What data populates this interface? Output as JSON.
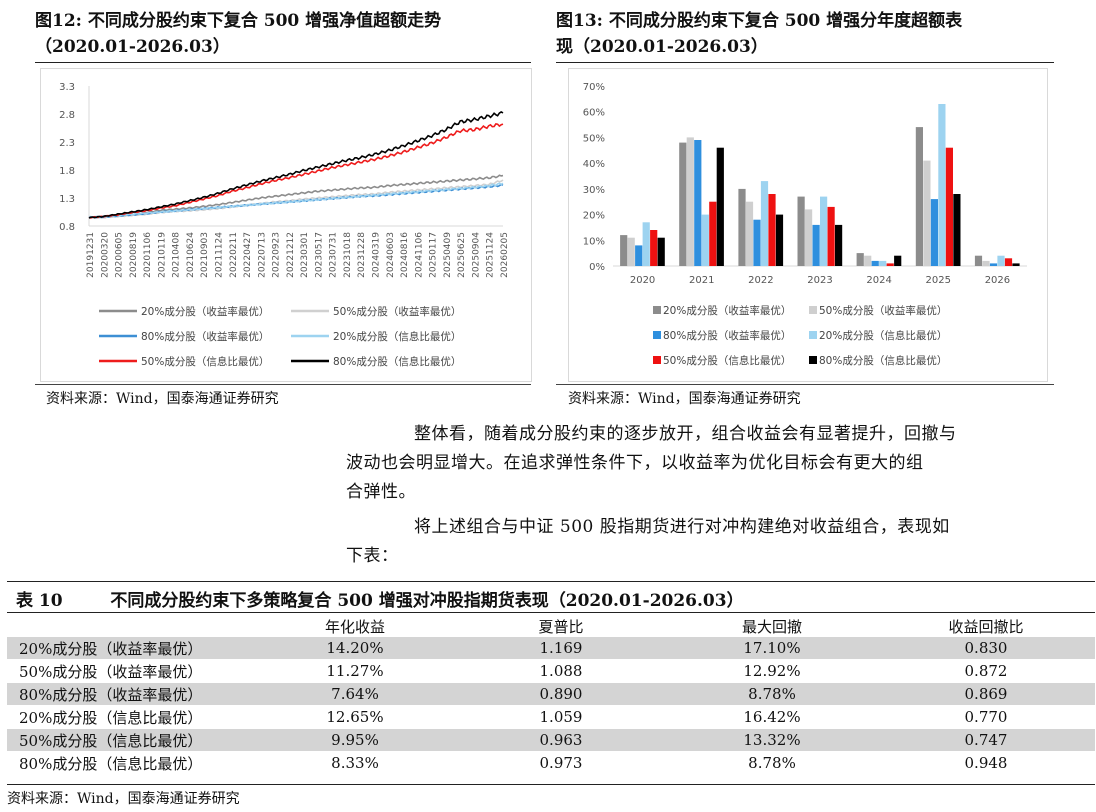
{
  "fig12": {
    "title_line1": "图12:  不同成分股约束下复合  500  增强净值超额走势",
    "title_line2": "（2020.01-2026.03）",
    "source": "资料来源：Wind，国泰海通证券研究"
  },
  "fig13": {
    "title_line1": "图13:  不同成分股约束下复合  500  增强分年度超额表",
    "title_line2": "现（2020.01-2026.03）",
    "source": "资料来源：Wind，国泰海通证券研究"
  },
  "paragraphs": {
    "p1_line1": "整体看，随着成分股约束的逐步放开，组合收益会有显著提升，回撤与",
    "p1_line2": "波动也会明显增大。在追求弹性条件下，以收益率为优化目标会有更大的组",
    "p1_line3": "合弹性。",
    "p2_line1": "将上述组合与中证 500 股指期货进行对冲构建绝对收益组合，表现如",
    "p2_line2": "下表："
  },
  "table10": {
    "label": "表 10",
    "title": "不同成分股约束下多策略复合 500 增强对冲股指期货表现（2020.01-2026.03）",
    "headers": [
      "",
      "年化收益",
      "夏普比",
      "最大回撤",
      "收益回撤比"
    ],
    "rows": [
      [
        "20%成分股（收益率最优）",
        "14.20%",
        "1.169",
        "17.10%",
        "0.830"
      ],
      [
        "50%成分股（收益率最优）",
        "11.27%",
        "1.088",
        "12.92%",
        "0.872"
      ],
      [
        "80%成分股（收益率最优）",
        "7.64%",
        "0.890",
        "8.78%",
        "0.869"
      ],
      [
        "20%成分股（信息比最优）",
        "12.65%",
        "1.059",
        "16.42%",
        "0.770"
      ],
      [
        "50%成分股（信息比最优）",
        "9.95%",
        "0.963",
        "13.32%",
        "0.747"
      ],
      [
        "80%成分股（信息比最优）",
        "8.33%",
        "0.973",
        "8.78%",
        "0.948"
      ]
    ],
    "source": "资料来源：Wind，国泰海通证券研究"
  },
  "chart_data": [
    {
      "type": "line",
      "title": "不同成分股约束下复合 500 增强净值超额走势",
      "ylim": [
        0.8,
        3.3
      ],
      "yticks": [
        "3.3",
        "2.8",
        "2.3",
        "1.8",
        "1.3",
        "0.8"
      ],
      "ytick_values": [
        3.3,
        2.8,
        2.3,
        1.8,
        1.3,
        0.8
      ],
      "x_tick_labels": [
        "20191231",
        "20200320",
        "20200605",
        "20200819",
        "20201106",
        "20210119",
        "20210408",
        "20210624",
        "20210903",
        "20211124",
        "20220211",
        "20220427",
        "20220713",
        "20220923",
        "20221212",
        "20230301",
        "20230517",
        "20230731",
        "20231018",
        "20231228",
        "20240319",
        "20240603",
        "20240816",
        "20241106",
        "20250117",
        "20250409",
        "20250625",
        "20250904",
        "20251124",
        "20260205"
      ],
      "series": [
        {
          "name": "20%成分股（收益率最优）",
          "color": "#8c8c8c",
          "values": [
            0.95,
            0.96,
            0.98,
            1.01,
            1.04,
            1.08,
            1.1,
            1.12,
            1.15,
            1.18,
            1.22,
            1.26,
            1.3,
            1.33,
            1.36,
            1.39,
            1.42,
            1.44,
            1.46,
            1.48,
            1.49,
            1.52,
            1.54,
            1.56,
            1.58,
            1.6,
            1.62,
            1.64,
            1.66,
            1.7
          ]
        },
        {
          "name": "50%成分股（收益率最优）",
          "color": "#d0d0d0",
          "values": [
            0.95,
            0.95,
            0.97,
            0.99,
            1.01,
            1.04,
            1.06,
            1.07,
            1.09,
            1.11,
            1.14,
            1.17,
            1.2,
            1.23,
            1.25,
            1.28,
            1.3,
            1.32,
            1.34,
            1.36,
            1.37,
            1.4,
            1.42,
            1.44,
            1.46,
            1.48,
            1.5,
            1.52,
            1.54,
            1.62
          ]
        },
        {
          "name": "80%成分股（收益率最优）",
          "color": "#3d8fd4",
          "values": [
            0.95,
            0.96,
            0.98,
            1.0,
            1.02,
            1.05,
            1.07,
            1.09,
            1.11,
            1.13,
            1.15,
            1.17,
            1.19,
            1.21,
            1.23,
            1.25,
            1.27,
            1.29,
            1.31,
            1.33,
            1.34,
            1.36,
            1.38,
            1.4,
            1.42,
            1.44,
            1.46,
            1.48,
            1.5,
            1.53
          ]
        },
        {
          "name": "20%成分股（信息比最优）",
          "color": "#9dd3f0",
          "values": [
            0.96,
            0.97,
            0.99,
            1.01,
            1.03,
            1.05,
            1.07,
            1.09,
            1.11,
            1.13,
            1.15,
            1.17,
            1.19,
            1.21,
            1.23,
            1.25,
            1.27,
            1.29,
            1.31,
            1.33,
            1.35,
            1.37,
            1.39,
            1.41,
            1.43,
            1.45,
            1.47,
            1.49,
            1.52,
            1.56
          ]
        },
        {
          "name": "50%成分股（信息比最优）",
          "color": "#ee1c1c",
          "values": [
            0.95,
            0.97,
            1.0,
            1.04,
            1.07,
            1.12,
            1.16,
            1.22,
            1.28,
            1.34,
            1.42,
            1.48,
            1.55,
            1.61,
            1.66,
            1.72,
            1.78,
            1.84,
            1.89,
            1.94,
            1.99,
            2.05,
            2.12,
            2.2,
            2.28,
            2.38,
            2.5,
            2.52,
            2.58,
            2.62
          ]
        },
        {
          "name": "80%成分股（信息比最优）",
          "color": "#000000",
          "values": [
            0.95,
            0.97,
            1.01,
            1.05,
            1.09,
            1.14,
            1.19,
            1.25,
            1.31,
            1.38,
            1.46,
            1.53,
            1.6,
            1.66,
            1.72,
            1.79,
            1.85,
            1.91,
            1.97,
            2.02,
            2.08,
            2.15,
            2.23,
            2.32,
            2.41,
            2.52,
            2.66,
            2.7,
            2.76,
            2.82
          ]
        }
      ]
    },
    {
      "type": "bar",
      "title": "不同成分股约束下复合 500 增强分年度超额表现",
      "categories": [
        "2020",
        "2021",
        "2022",
        "2023",
        "2024",
        "2025",
        "2026"
      ],
      "ylim": [
        0,
        70
      ],
      "yticks": [
        "70%",
        "60%",
        "50%",
        "40%",
        "30%",
        "20%",
        "10%",
        "0%"
      ],
      "ytick_values": [
        70,
        60,
        50,
        40,
        30,
        20,
        10,
        0
      ],
      "series": [
        {
          "name": "20%成分股（收益率最优）",
          "color": "#8c8c8c",
          "values": [
            12,
            48,
            30,
            27,
            5,
            54,
            4
          ]
        },
        {
          "name": "50%成分股（收益率最优）",
          "color": "#cfcfcf",
          "values": [
            11,
            50,
            25,
            22,
            4,
            41,
            2
          ]
        },
        {
          "name": "80%成分股（收益率最优）",
          "color": "#2e8fde",
          "values": [
            8,
            49,
            18,
            16,
            2,
            26,
            1
          ]
        },
        {
          "name": "20%成分股（信息比最优）",
          "color": "#9dd3f0",
          "values": [
            17,
            20,
            33,
            27,
            2,
            63,
            4
          ]
        },
        {
          "name": "50%成分股（信息比最优）",
          "color": "#ee1111",
          "values": [
            14,
            25,
            28,
            23,
            1,
            46,
            3
          ]
        },
        {
          "name": "80%成分股（信息比最优）",
          "color": "#000000",
          "values": [
            11,
            46,
            20,
            16,
            4,
            28,
            1
          ]
        }
      ]
    }
  ]
}
